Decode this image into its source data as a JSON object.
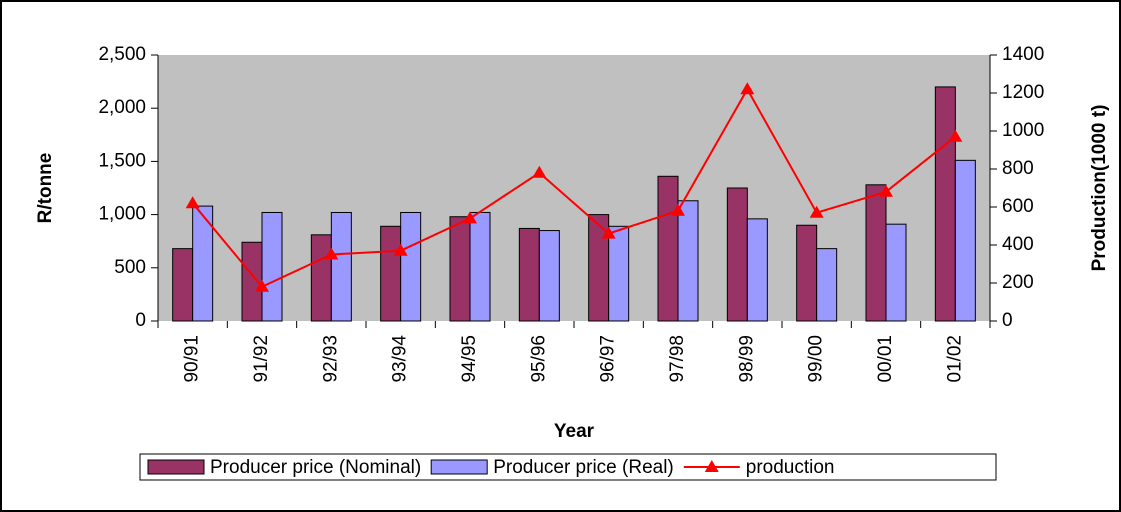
{
  "chart_data": {
    "type": "bar",
    "x_label": "Year",
    "y_label": "R/tonne",
    "y2_label": "Production(1000 t)",
    "categories": [
      "90/91",
      "91/92",
      "92/93",
      "93/94",
      "94/95",
      "95/96",
      "96/97",
      "97/98",
      "98/99",
      "99/00",
      "00/01",
      "01/02"
    ],
    "series": [
      {
        "name": "Producer price (Nominal)",
        "color": "#993366",
        "type": "bar",
        "values": [
          680,
          740,
          810,
          890,
          980,
          870,
          1000,
          1360,
          1250,
          900,
          1280,
          2200
        ]
      },
      {
        "name": "Producer price (Real)",
        "color": "#9999ff",
        "type": "bar",
        "values": [
          1080,
          1020,
          1020,
          1020,
          1020,
          850,
          890,
          1130,
          960,
          680,
          910,
          1510
        ]
      },
      {
        "name": "production",
        "color": "#ff0000",
        "type": "line",
        "axis": "y2",
        "values": [
          620,
          180,
          350,
          370,
          540,
          780,
          460,
          580,
          1220,
          570,
          680,
          970
        ]
      }
    ],
    "ylim": [
      0,
      2500
    ],
    "yticks": [
      0,
      500,
      {
        "value": 1000,
        "label": "1,000"
      },
      {
        "value": 1500,
        "label": "1,500"
      },
      {
        "value": 2000,
        "label": "2,000"
      },
      {
        "value": 2500,
        "label": "2,500"
      }
    ],
    "y2lim": [
      0,
      1400
    ],
    "y2ticks": [
      0,
      200,
      400,
      600,
      800,
      1000,
      1200,
      1400
    ],
    "plot_background": "#c0c0c0",
    "grid": false,
    "legend": "bottom"
  }
}
